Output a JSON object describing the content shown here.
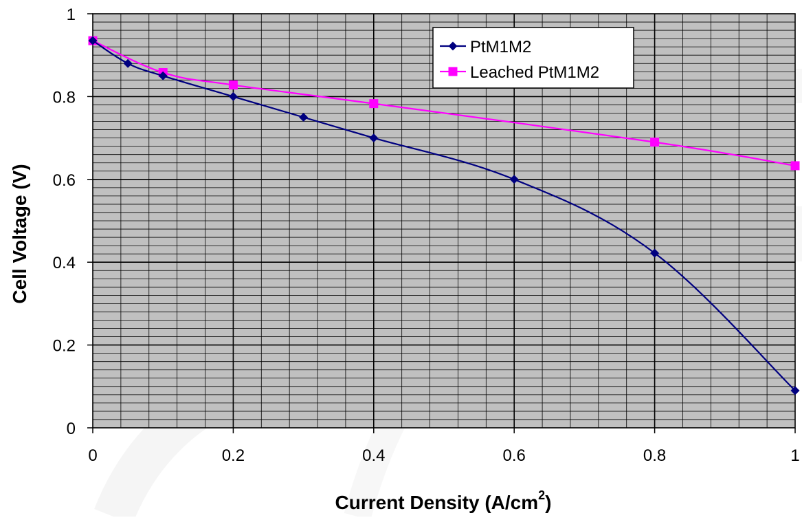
{
  "chart_data": {
    "type": "line",
    "title": "",
    "xlabel": "Current Density (A/cm",
    "xlabel_sup": "2",
    "xlabel_suffix": ")",
    "ylabel": "Cell Voltage (V)",
    "xlim": [
      0,
      1
    ],
    "ylim": [
      0,
      1
    ],
    "x_ticks": [
      "0",
      "0.2",
      "0.4",
      "0.6",
      "0.8",
      "1"
    ],
    "y_ticks": [
      "0",
      "0.2",
      "0.4",
      "0.6",
      "0.8",
      "1"
    ],
    "grid": true,
    "legend_position": "top-right",
    "plot_background": "#c0c0c0",
    "series": [
      {
        "name": "PtM1M2",
        "color": "#000080",
        "marker": "diamond",
        "x": [
          0,
          0.05,
          0.1,
          0.2,
          0.3,
          0.4,
          0.6,
          0.8,
          1.0
        ],
        "y": [
          0.935,
          0.88,
          0.85,
          0.8,
          0.75,
          0.7,
          0.6,
          0.422,
          0.09
        ]
      },
      {
        "name": "Leached PtM1M2",
        "color": "#ff00ff",
        "marker": "square",
        "x": [
          0,
          0.1,
          0.2,
          0.4,
          0.8,
          1.0
        ],
        "y": [
          0.935,
          0.858,
          0.828,
          0.783,
          0.69,
          0.633
        ]
      }
    ]
  }
}
